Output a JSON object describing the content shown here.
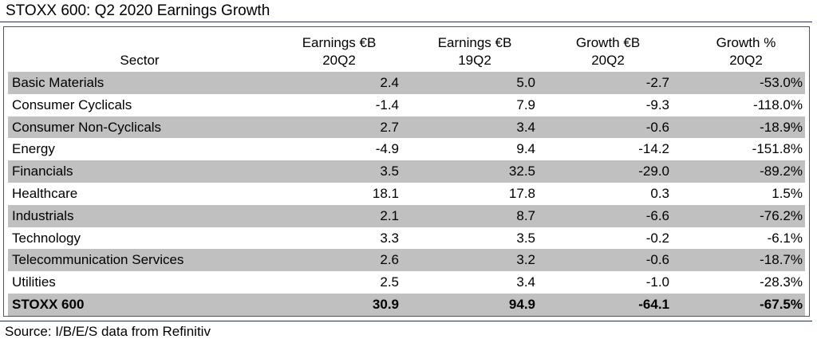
{
  "title": "STOXX 600: Q2 2020 Earnings Growth",
  "header": {
    "sector": "Sector",
    "col1_line1": "Earnings €B",
    "col1_line2": "20Q2",
    "col2_line1": "Earnings €B",
    "col2_line2": "19Q2",
    "col3_line1": "Growth €B",
    "col3_line2": "20Q2",
    "col4_line1": "Growth %",
    "col4_line2": "20Q2"
  },
  "rows": [
    {
      "sector": "Basic Materials",
      "e20": "2.4",
      "e19": "5.0",
      "g": "-2.7",
      "gp": "-53.0%"
    },
    {
      "sector": "Consumer Cyclicals",
      "e20": "-1.4",
      "e19": "7.9",
      "g": "-9.3",
      "gp": "-118.0%"
    },
    {
      "sector": "Consumer Non-Cyclicals",
      "e20": "2.7",
      "e19": "3.4",
      "g": "-0.6",
      "gp": "-18.9%"
    },
    {
      "sector": "Energy",
      "e20": "-4.9",
      "e19": "9.4",
      "g": "-14.2",
      "gp": "-151.8%"
    },
    {
      "sector": "Financials",
      "e20": "3.5",
      "e19": "32.5",
      "g": "-29.0",
      "gp": "-89.2%"
    },
    {
      "sector": "Healthcare",
      "e20": "18.1",
      "e19": "17.8",
      "g": "0.3",
      "gp": "1.5%"
    },
    {
      "sector": "Industrials",
      "e20": "2.1",
      "e19": "8.7",
      "g": "-6.6",
      "gp": "-76.2%"
    },
    {
      "sector": "Technology",
      "e20": "3.3",
      "e19": "3.5",
      "g": "-0.2",
      "gp": "-6.1%"
    },
    {
      "sector": "Telecommunication Services",
      "e20": "2.6",
      "e19": "3.2",
      "g": "-0.6",
      "gp": "-18.7%"
    },
    {
      "sector": "Utilities",
      "e20": "2.5",
      "e19": "3.4",
      "g": "-1.0",
      "gp": "-28.3%"
    },
    {
      "sector": "STOXX 600",
      "e20": "30.9",
      "e19": "94.9",
      "g": "-64.1",
      "gp": "-67.5%"
    }
  ],
  "source": "Source: I/B/E/S data from Refinitiv",
  "colors": {
    "shade": "#c0c0c0",
    "rule": "#1f2f6e"
  },
  "chart_data": {
    "type": "table",
    "title": "STOXX 600: Q2 2020 Earnings Growth",
    "columns": [
      "Sector",
      "Earnings €B 20Q2",
      "Earnings €B 19Q2",
      "Growth €B 20Q2",
      "Growth % 20Q2"
    ],
    "rows": [
      [
        "Basic Materials",
        2.4,
        5.0,
        -2.7,
        -53.0
      ],
      [
        "Consumer Cyclicals",
        -1.4,
        7.9,
        -9.3,
        -118.0
      ],
      [
        "Consumer Non-Cyclicals",
        2.7,
        3.4,
        -0.6,
        -18.9
      ],
      [
        "Energy",
        -4.9,
        9.4,
        -14.2,
        -151.8
      ],
      [
        "Financials",
        3.5,
        32.5,
        -29.0,
        -89.2
      ],
      [
        "Healthcare",
        18.1,
        17.8,
        0.3,
        1.5
      ],
      [
        "Industrials",
        2.1,
        8.7,
        -6.6,
        -76.2
      ],
      [
        "Technology",
        3.3,
        3.5,
        -0.2,
        -6.1
      ],
      [
        "Telecommunication Services",
        2.6,
        3.2,
        -0.6,
        -18.7
      ],
      [
        "Utilities",
        2.5,
        3.4,
        -1.0,
        -28.3
      ],
      [
        "STOXX 600",
        30.9,
        94.9,
        -64.1,
        -67.5
      ]
    ]
  }
}
